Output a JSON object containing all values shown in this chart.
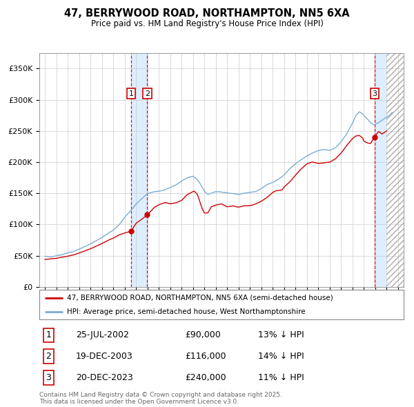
{
  "title": "47, BERRYWOOD ROAD, NORTHAMPTON, NN5 6XA",
  "subtitle": "Price paid vs. HM Land Registry's House Price Index (HPI)",
  "property_label": "47, BERRYWOOD ROAD, NORTHAMPTON, NN5 6XA (semi-detached house)",
  "hpi_label": "HPI: Average price, semi-detached house, West Northamptonshire",
  "footer": "Contains HM Land Registry data © Crown copyright and database right 2025.\nThis data is licensed under the Open Government Licence v3.0.",
  "transactions": [
    {
      "num": 1,
      "date": "25-JUL-2002",
      "price": 90000,
      "note": "13% ↓ HPI",
      "date_x": 2002.56
    },
    {
      "num": 2,
      "date": "19-DEC-2003",
      "price": 116000,
      "note": "14% ↓ HPI",
      "date_x": 2003.97
    },
    {
      "num": 3,
      "date": "20-DEC-2023",
      "price": 240000,
      "note": "11% ↓ HPI",
      "date_x": 2023.96
    }
  ],
  "red_line_color": "#cc0000",
  "blue_line_color": "#7aadd4",
  "background_color": "#ffffff",
  "grid_color": "#cccccc",
  "shade_color": "#ddeeff",
  "ylim": [
    0,
    375000
  ],
  "yticks": [
    0,
    50000,
    100000,
    150000,
    200000,
    250000,
    300000,
    350000
  ],
  "xlim_start": 1994.5,
  "xlim_end": 2026.5,
  "hpi_anchors": [
    [
      1995.0,
      49000
    ],
    [
      1995.5,
      48000
    ],
    [
      1996.0,
      50000
    ],
    [
      1996.5,
      52000
    ],
    [
      1997.0,
      55000
    ],
    [
      1997.5,
      57000
    ],
    [
      1998.0,
      61000
    ],
    [
      1998.5,
      65000
    ],
    [
      1999.0,
      69000
    ],
    [
      1999.5,
      74000
    ],
    [
      2000.0,
      79000
    ],
    [
      2000.5,
      85000
    ],
    [
      2001.0,
      91000
    ],
    [
      2001.5,
      100000
    ],
    [
      2002.0,
      112000
    ],
    [
      2002.5,
      122000
    ],
    [
      2003.0,
      133000
    ],
    [
      2003.5,
      142000
    ],
    [
      2004.0,
      150000
    ],
    [
      2004.3,
      152000
    ],
    [
      2004.5,
      153000
    ],
    [
      2005.0,
      154000
    ],
    [
      2005.5,
      156000
    ],
    [
      2006.0,
      160000
    ],
    [
      2006.5,
      164000
    ],
    [
      2007.0,
      170000
    ],
    [
      2007.5,
      176000
    ],
    [
      2008.0,
      178000
    ],
    [
      2008.3,
      174000
    ],
    [
      2008.6,
      167000
    ],
    [
      2009.0,
      154000
    ],
    [
      2009.3,
      149000
    ],
    [
      2009.6,
      151000
    ],
    [
      2010.0,
      154000
    ],
    [
      2010.5,
      153000
    ],
    [
      2011.0,
      152000
    ],
    [
      2011.5,
      151000
    ],
    [
      2012.0,
      150000
    ],
    [
      2012.5,
      152000
    ],
    [
      2013.0,
      153000
    ],
    [
      2013.5,
      155000
    ],
    [
      2014.0,
      160000
    ],
    [
      2014.5,
      166000
    ],
    [
      2015.0,
      170000
    ],
    [
      2015.5,
      175000
    ],
    [
      2016.0,
      182000
    ],
    [
      2016.5,
      192000
    ],
    [
      2017.0,
      200000
    ],
    [
      2017.5,
      207000
    ],
    [
      2018.0,
      213000
    ],
    [
      2018.5,
      218000
    ],
    [
      2019.0,
      222000
    ],
    [
      2019.5,
      224000
    ],
    [
      2020.0,
      222000
    ],
    [
      2020.5,
      226000
    ],
    [
      2021.0,
      235000
    ],
    [
      2021.5,
      248000
    ],
    [
      2022.0,
      265000
    ],
    [
      2022.3,
      277000
    ],
    [
      2022.6,
      283000
    ],
    [
      2022.9,
      280000
    ],
    [
      2023.0,
      277000
    ],
    [
      2023.3,
      272000
    ],
    [
      2023.6,
      265000
    ],
    [
      2023.9,
      262000
    ],
    [
      2024.0,
      263000
    ],
    [
      2024.3,
      266000
    ],
    [
      2024.6,
      270000
    ],
    [
      2025.0,
      275000
    ],
    [
      2025.3,
      279000
    ],
    [
      2025.5,
      283000
    ]
  ],
  "red_anchors": [
    [
      1995.0,
      44000
    ],
    [
      1995.5,
      45000
    ],
    [
      1996.0,
      46000
    ],
    [
      1996.5,
      48000
    ],
    [
      1997.0,
      50000
    ],
    [
      1997.5,
      52000
    ],
    [
      1998.0,
      55000
    ],
    [
      1998.5,
      58000
    ],
    [
      1999.0,
      62000
    ],
    [
      1999.5,
      66000
    ],
    [
      2000.0,
      70000
    ],
    [
      2000.5,
      75000
    ],
    [
      2001.0,
      79000
    ],
    [
      2001.5,
      84000
    ],
    [
      2002.0,
      87000
    ],
    [
      2002.4,
      89000
    ],
    [
      2002.56,
      90000
    ],
    [
      2003.0,
      103000
    ],
    [
      2003.7,
      112000
    ],
    [
      2003.97,
      116000
    ],
    [
      2004.0,
      116500
    ],
    [
      2004.3,
      122000
    ],
    [
      2004.6,
      128000
    ],
    [
      2005.0,
      132000
    ],
    [
      2005.5,
      135000
    ],
    [
      2006.0,
      133000
    ],
    [
      2006.5,
      134000
    ],
    [
      2007.0,
      138000
    ],
    [
      2007.5,
      147000
    ],
    [
      2008.0,
      152000
    ],
    [
      2008.1,
      153000
    ],
    [
      2008.4,
      147000
    ],
    [
      2008.8,
      125000
    ],
    [
      2009.0,
      118000
    ],
    [
      2009.3,
      118000
    ],
    [
      2009.6,
      128000
    ],
    [
      2010.0,
      131000
    ],
    [
      2010.5,
      133000
    ],
    [
      2011.0,
      128000
    ],
    [
      2011.5,
      130000
    ],
    [
      2012.0,
      128000
    ],
    [
      2012.5,
      130000
    ],
    [
      2013.0,
      130000
    ],
    [
      2013.5,
      133000
    ],
    [
      2014.0,
      137000
    ],
    [
      2014.5,
      143000
    ],
    [
      2015.0,
      151000
    ],
    [
      2015.3,
      154000
    ],
    [
      2015.8,
      155000
    ],
    [
      2016.0,
      160000
    ],
    [
      2016.5,
      168000
    ],
    [
      2017.0,
      179000
    ],
    [
      2017.5,
      189000
    ],
    [
      2018.0,
      197000
    ],
    [
      2018.5,
      200000
    ],
    [
      2019.0,
      198000
    ],
    [
      2019.5,
      199000
    ],
    [
      2020.0,
      200000
    ],
    [
      2020.5,
      205000
    ],
    [
      2021.0,
      214000
    ],
    [
      2021.5,
      226000
    ],
    [
      2022.0,
      237000
    ],
    [
      2022.3,
      241000
    ],
    [
      2022.6,
      242000
    ],
    [
      2022.9,
      238000
    ],
    [
      2023.0,
      233000
    ],
    [
      2023.3,
      230000
    ],
    [
      2023.6,
      229000
    ],
    [
      2023.96,
      240000
    ],
    [
      2024.0,
      240500
    ],
    [
      2024.3,
      248000
    ],
    [
      2024.6,
      244000
    ],
    [
      2025.0,
      249000
    ]
  ]
}
